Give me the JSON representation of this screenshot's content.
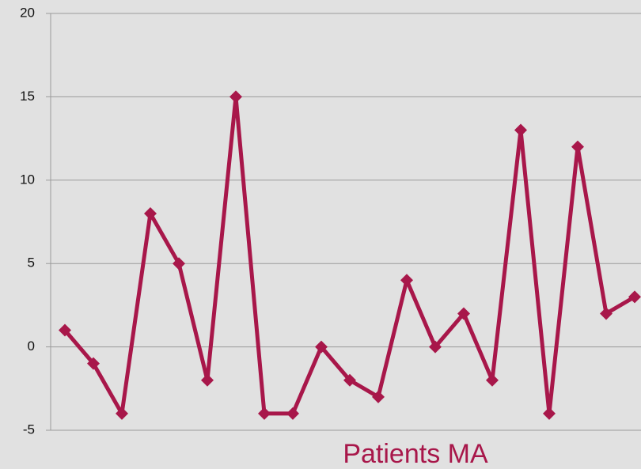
{
  "chart_data": {
    "type": "line",
    "categories": [
      null,
      null,
      null,
      null,
      null,
      null,
      null,
      null,
      null,
      null,
      null,
      null,
      null,
      null,
      null,
      null,
      null,
      null,
      null,
      null,
      null
    ],
    "series": [
      {
        "name": "Patients MA",
        "color": "#a8174a",
        "values": [
          1,
          -1,
          -4,
          8,
          5,
          -2,
          15,
          -4,
          -4,
          0,
          -2,
          -3,
          4,
          0,
          2,
          -2,
          13,
          -4,
          12,
          2,
          3
        ]
      }
    ],
    "ylim": [
      -5,
      20
    ],
    "yticks": [
      -5,
      0,
      5,
      10,
      15,
      20
    ],
    "grid": true,
    "legend": "bottom"
  }
}
